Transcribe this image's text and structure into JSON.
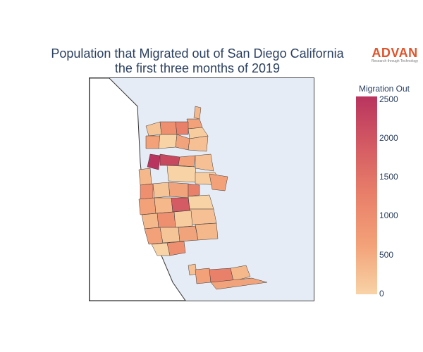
{
  "title_line1": "Population that Migrated out of San Diego California",
  "title_line2": "the first three months of 2019",
  "logo": {
    "name": "ADVAN",
    "tagline": "Research through Technology",
    "color": "#e0542a"
  },
  "colorbar": {
    "title": "Migration Out",
    "ticks": [
      "2500",
      "2000",
      "1500",
      "1000",
      "500",
      "0"
    ],
    "range": [
      0,
      2500
    ],
    "colors": [
      "#f8d3a6",
      "#f3a178",
      "#e9806a",
      "#d45b63",
      "#b9345f"
    ]
  },
  "map": {
    "ocean_color": "#e5ecf6",
    "land_color": "#ffffff",
    "border_color": "#333333"
  }
}
